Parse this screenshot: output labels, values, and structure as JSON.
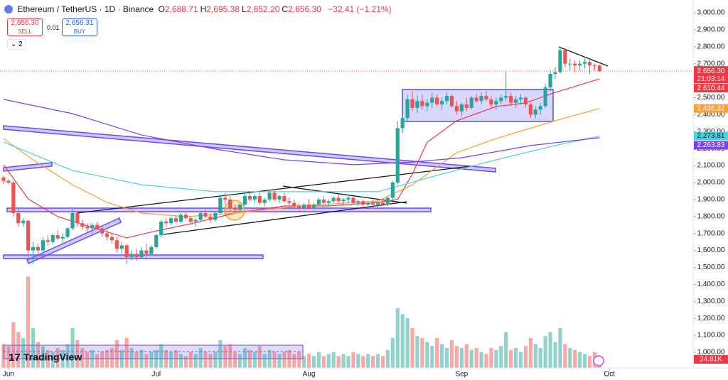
{
  "header": {
    "symbol": "Ethereum / TetherUS · 1D · Binance",
    "ohlc_labels": [
      {
        "key": "O",
        "value": "2,688.71"
      },
      {
        "key": "H",
        "value": "2,695.38"
      },
      {
        "key": "L",
        "value": "2,652.20"
      },
      {
        "key": "C",
        "value": "2,656.30"
      }
    ],
    "change": "−32.41 (−1.21%)",
    "sell_price": "2,656.30",
    "sell": "SELL",
    "spread": "0.01",
    "buy_price": "2,656.31",
    "buy": "BUY",
    "indicator_count": "2",
    "logo": "TradingView"
  },
  "chart_data": {
    "type": "candlestick",
    "up_color": "#26a69a",
    "down_color": "#ef5350",
    "xlim": [
      -0.72,
      140
    ],
    "xticks": [
      {
        "value": 1,
        "label": "Jun"
      },
      {
        "value": 31,
        "label": "Jul"
      },
      {
        "value": 62,
        "label": "Aug"
      },
      {
        "value": 93,
        "label": "Sep"
      },
      {
        "value": 123,
        "label": "Oct"
      }
    ],
    "ylim": [
      907.9,
      3075.3
    ],
    "yticks": [
      {
        "value": 1000,
        "label": "1,000.00"
      },
      {
        "value": 1100,
        "label": "1,100.00"
      },
      {
        "value": 1200,
        "label": "1,200.00"
      },
      {
        "value": 1300,
        "label": "1,300.00"
      },
      {
        "value": 1400,
        "label": "1,400.00"
      },
      {
        "value": 1500,
        "label": "1,500.00"
      },
      {
        "value": 1600,
        "label": "1,600.00"
      },
      {
        "value": 1700,
        "label": "1,700.00"
      },
      {
        "value": 1800,
        "label": "1,800.00"
      },
      {
        "value": 1900,
        "label": "1,900.00"
      },
      {
        "value": 2000,
        "label": "2,000.00"
      },
      {
        "value": 2100,
        "label": "2,100.00"
      },
      {
        "value": 2200,
        "label": "2,200.00"
      },
      {
        "value": 2300,
        "label": "2,300.00"
      },
      {
        "value": 2400,
        "label": "2,400.00"
      },
      {
        "value": 2500,
        "label": "2,500.00"
      },
      {
        "value": 2600,
        "label": "2,600.00"
      },
      {
        "value": 2700,
        "label": "2,700.00"
      },
      {
        "value": 2800,
        "label": "2,800.00"
      },
      {
        "value": 2900,
        "label": "2,900.00"
      },
      {
        "value": 3000,
        "label": "3,000.00"
      }
    ],
    "grid": false,
    "ohlc": [
      [
        2030,
        2040,
        1990,
        2010
      ],
      [
        2010,
        2020,
        1990,
        2000
      ],
      [
        2000,
        2010,
        1800,
        1820
      ],
      [
        1820,
        1850,
        1740,
        1760
      ],
      [
        1760,
        1790,
        1740,
        1775
      ],
      [
        1775,
        1780,
        1560,
        1600
      ],
      [
        1600,
        1650,
        1520,
        1620
      ],
      [
        1620,
        1640,
        1580,
        1600
      ],
      [
        1600,
        1680,
        1590,
        1660
      ],
      [
        1660,
        1690,
        1630,
        1650
      ],
      [
        1650,
        1700,
        1640,
        1690
      ],
      [
        1690,
        1720,
        1660,
        1670
      ],
      [
        1670,
        1700,
        1640,
        1680
      ],
      [
        1680,
        1740,
        1670,
        1730
      ],
      [
        1730,
        1850,
        1720,
        1820
      ],
      [
        1820,
        1830,
        1740,
        1760
      ],
      [
        1760,
        1780,
        1720,
        1740
      ],
      [
        1740,
        1760,
        1710,
        1730
      ],
      [
        1730,
        1760,
        1700,
        1750
      ],
      [
        1750,
        1770,
        1720,
        1730
      ],
      [
        1730,
        1740,
        1680,
        1700
      ],
      [
        1700,
        1720,
        1660,
        1680
      ],
      [
        1680,
        1700,
        1640,
        1660
      ],
      [
        1660,
        1680,
        1590,
        1610
      ],
      [
        1610,
        1650,
        1580,
        1630
      ],
      [
        1630,
        1640,
        1520,
        1560
      ],
      [
        1560,
        1600,
        1540,
        1580
      ],
      [
        1580,
        1610,
        1540,
        1560
      ],
      [
        1560,
        1620,
        1550,
        1600
      ],
      [
        1600,
        1640,
        1560,
        1580
      ],
      [
        1580,
        1630,
        1570,
        1620
      ],
      [
        1620,
        1700,
        1610,
        1690
      ],
      [
        1690,
        1780,
        1680,
        1770
      ],
      [
        1770,
        1790,
        1740,
        1760
      ],
      [
        1760,
        1800,
        1750,
        1790
      ],
      [
        1790,
        1810,
        1760,
        1770
      ],
      [
        1770,
        1820,
        1760,
        1810
      ],
      [
        1810,
        1830,
        1780,
        1790
      ],
      [
        1790,
        1800,
        1750,
        1770
      ],
      [
        1770,
        1790,
        1740,
        1780
      ],
      [
        1780,
        1830,
        1770,
        1820
      ],
      [
        1820,
        1840,
        1790,
        1800
      ],
      [
        1800,
        1820,
        1760,
        1780
      ],
      [
        1780,
        1830,
        1770,
        1820
      ],
      [
        1820,
        1930,
        1810,
        1910
      ],
      [
        1910,
        1940,
        1870,
        1900
      ],
      [
        1900,
        1920,
        1830,
        1850
      ],
      [
        1850,
        1870,
        1820,
        1840
      ],
      [
        1840,
        1880,
        1830,
        1870
      ],
      [
        1870,
        1940,
        1860,
        1920
      ],
      [
        1920,
        1950,
        1890,
        1900
      ],
      [
        1900,
        1930,
        1880,
        1920
      ],
      [
        1920,
        1940,
        1870,
        1880
      ],
      [
        1880,
        1910,
        1860,
        1900
      ],
      [
        1900,
        1950,
        1890,
        1940
      ],
      [
        1940,
        1960,
        1890,
        1900
      ],
      [
        1900,
        1930,
        1880,
        1920
      ],
      [
        1920,
        1940,
        1880,
        1890
      ],
      [
        1890,
        1910,
        1860,
        1880
      ],
      [
        1880,
        1900,
        1850,
        1860
      ],
      [
        1860,
        1880,
        1830,
        1850
      ],
      [
        1850,
        1880,
        1840,
        1870
      ],
      [
        1870,
        1900,
        1840,
        1850
      ],
      [
        1850,
        1880,
        1840,
        1870
      ],
      [
        1870,
        1910,
        1860,
        1900
      ],
      [
        1900,
        1920,
        1870,
        1880
      ],
      [
        1880,
        1900,
        1860,
        1890
      ],
      [
        1890,
        1920,
        1880,
        1910
      ],
      [
        1910,
        1930,
        1880,
        1890
      ],
      [
        1890,
        1910,
        1870,
        1900
      ],
      [
        1900,
        1920,
        1880,
        1910
      ],
      [
        1910,
        1920,
        1870,
        1880
      ],
      [
        1880,
        1900,
        1860,
        1890
      ],
      [
        1890,
        1900,
        1860,
        1870
      ],
      [
        1870,
        1890,
        1850,
        1880
      ],
      [
        1880,
        1900,
        1860,
        1870
      ],
      [
        1870,
        1890,
        1850,
        1880
      ],
      [
        1880,
        1900,
        1860,
        1870
      ],
      [
        1870,
        1920,
        1860,
        1910
      ],
      [
        1910,
        2010,
        1900,
        2000
      ],
      [
        2000,
        2360,
        1990,
        2320
      ],
      [
        2320,
        2400,
        2290,
        2380
      ],
      [
        2380,
        2520,
        2360,
        2490
      ],
      [
        2490,
        2540,
        2420,
        2440
      ],
      [
        2440,
        2510,
        2410,
        2480
      ],
      [
        2480,
        2520,
        2430,
        2450
      ],
      [
        2450,
        2490,
        2420,
        2470
      ],
      [
        2470,
        2530,
        2440,
        2500
      ],
      [
        2500,
        2520,
        2450,
        2460
      ],
      [
        2460,
        2500,
        2430,
        2480
      ],
      [
        2480,
        2530,
        2460,
        2510
      ],
      [
        2510,
        2520,
        2440,
        2450
      ],
      [
        2450,
        2480,
        2400,
        2420
      ],
      [
        2420,
        2470,
        2390,
        2460
      ],
      [
        2460,
        2500,
        2420,
        2440
      ],
      [
        2440,
        2510,
        2430,
        2500
      ],
      [
        2500,
        2520,
        2470,
        2480
      ],
      [
        2480,
        2530,
        2460,
        2510
      ],
      [
        2510,
        2540,
        2480,
        2490
      ],
      [
        2490,
        2510,
        2440,
        2460
      ],
      [
        2460,
        2500,
        2430,
        2480
      ],
      [
        2480,
        2520,
        2460,
        2500
      ],
      [
        2500,
        2660,
        2480,
        2510
      ],
      [
        2510,
        2530,
        2450,
        2470
      ],
      [
        2470,
        2510,
        2440,
        2490
      ],
      [
        2490,
        2520,
        2460,
        2500
      ],
      [
        2500,
        2510,
        2440,
        2460
      ],
      [
        2460,
        2470,
        2380,
        2400
      ],
      [
        2400,
        2450,
        2380,
        2430
      ],
      [
        2430,
        2470,
        2400,
        2450
      ],
      [
        2450,
        2580,
        2440,
        2560
      ],
      [
        2560,
        2660,
        2540,
        2640
      ],
      [
        2640,
        2680,
        2610,
        2650
      ],
      [
        2650,
        2800,
        2640,
        2780
      ],
      [
        2780,
        2790,
        2680,
        2700
      ],
      [
        2700,
        2730,
        2660,
        2700
      ],
      [
        2700,
        2720,
        2650,
        2690
      ],
      [
        2690,
        2720,
        2660,
        2700
      ],
      [
        2700,
        2730,
        2670,
        2710
      ],
      [
        2710,
        2720,
        2640,
        2690
      ],
      [
        2690,
        2700,
        2660,
        2688.71
      ],
      [
        2688.71,
        2695.38,
        2652.2,
        2656.3
      ]
    ],
    "volume": [
      120000,
      110000,
      230000,
      180000,
      150000,
      460000,
      200000,
      130000,
      110000,
      90000,
      80000,
      100000,
      90000,
      120000,
      200000,
      140000,
      100000,
      80000,
      90000,
      70000,
      80000,
      90000,
      100000,
      140000,
      90000,
      150000,
      100000,
      80000,
      90000,
      70000,
      80000,
      90000,
      120000,
      90000,
      80000,
      90000,
      70000,
      60000,
      80000,
      70000,
      100000,
      80000,
      70000,
      80000,
      140000,
      110000,
      120000,
      80000,
      70000,
      100000,
      90000,
      80000,
      110000,
      70000,
      90000,
      80000,
      70000,
      80000,
      90000,
      70000,
      80000,
      60000,
      70000,
      60000,
      80000,
      60000,
      70000,
      80000,
      60000,
      70000,
      60000,
      80000,
      70000,
      60000,
      70000,
      60000,
      70000,
      60000,
      90000,
      150000,
      300000,
      270000,
      250000,
      200000,
      160000,
      150000,
      130000,
      110000,
      150000,
      120000,
      100000,
      140000,
      110000,
      100000,
      120000,
      90000,
      100000,
      80000,
      70000,
      100000,
      90000,
      110000,
      180000,
      90000,
      100000,
      80000,
      110000,
      150000,
      120000,
      100000,
      160000,
      180000,
      130000,
      200000,
      120000,
      100000,
      90000,
      80000,
      70000,
      60000,
      80000,
      24810
    ],
    "volume_ylim": [
      0,
      1000000
    ],
    "last_volume_label": "24.81K",
    "close_label": "2,656.30",
    "countdown": "21:03:14",
    "indicators": [
      {
        "color": "#f23645",
        "x": [
          0,
          5,
          11,
          18,
          25,
          31,
          38,
          47,
          57,
          66,
          76,
          80,
          83,
          86,
          92,
          100,
          106,
          112,
          121
        ],
        "values": [
          2105,
          1904,
          1799,
          1736,
          1674,
          1715,
          1757,
          1820,
          1862,
          1862,
          1883,
          1900,
          2050,
          2238,
          2364,
          2448,
          2469,
          2531,
          2610.44
        ],
        "last_label": "2,610.44"
      },
      {
        "color": "#f7a134",
        "x": [
          0,
          6,
          14,
          21,
          28,
          37,
          47,
          60,
          76,
          83,
          92,
          100,
          112,
          121
        ],
        "values": [
          2259,
          2134,
          1987,
          1883,
          1820,
          1799,
          1820,
          1862,
          1891,
          1987,
          2176,
          2259,
          2364,
          2436.32
        ],
        "last_label": "2,436.32"
      },
      {
        "color": "#4dd0e1",
        "x": [
          0,
          14,
          28,
          43,
          60,
          76,
          89,
          100,
          112,
          121
        ],
        "values": [
          2238,
          2071,
          1987,
          1946,
          1946,
          1946,
          2050,
          2134,
          2218,
          2273.81
        ],
        "last_label": "2,273.81"
      },
      {
        "color": "#7e3ff2",
        "x": [
          0,
          14,
          28,
          43,
          57,
          71,
          83,
          93,
          107,
          121
        ],
        "values": [
          2490,
          2406,
          2280,
          2197,
          2134,
          2105,
          2121,
          2146,
          2218,
          2263.83
        ],
        "last_label": "2,263.83"
      }
    ]
  }
}
